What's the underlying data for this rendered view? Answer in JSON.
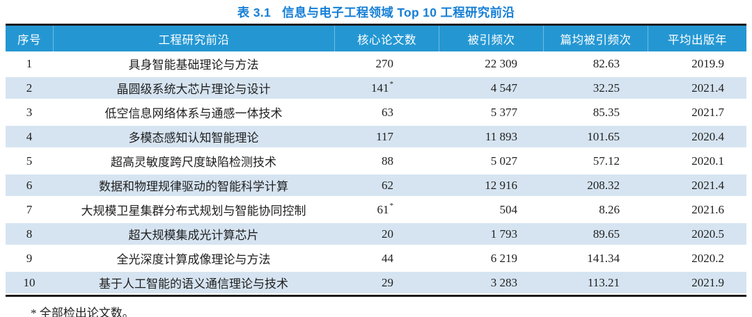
{
  "title": {
    "prefix": "表 3.1",
    "text": "信息与电子工程领域 Top 10 工程研究前沿"
  },
  "chart_data": {
    "type": "table",
    "title": "表 3.1 信息与电子工程领域 Top 10 工程研究前沿",
    "columns": [
      "序号",
      "工程研究前沿",
      "核心论文数",
      "被引频次",
      "篇均被引频次",
      "平均出版年"
    ],
    "rows": [
      {
        "rank": "1",
        "front": "具身智能基础理论与方法",
        "core": "270",
        "core_star": false,
        "cites": "22 309",
        "cpp": "82.63",
        "year": "2019.9"
      },
      {
        "rank": "2",
        "front": "晶圆级系统大芯片理论与设计",
        "core": "141",
        "core_star": true,
        "cites": "4 547",
        "cpp": "32.25",
        "year": "2021.4"
      },
      {
        "rank": "3",
        "front": "低空信息网络体系与通感一体技术",
        "core": "63",
        "core_star": false,
        "cites": "5 377",
        "cpp": "85.35",
        "year": "2021.7"
      },
      {
        "rank": "4",
        "front": "多模态感知认知智能理论",
        "core": "117",
        "core_star": false,
        "cites": "11 893",
        "cpp": "101.65",
        "year": "2020.4"
      },
      {
        "rank": "5",
        "front": "超高灵敏度跨尺度缺陷检测技术",
        "core": "88",
        "core_star": false,
        "cites": "5 027",
        "cpp": "57.12",
        "year": "2020.1"
      },
      {
        "rank": "6",
        "front": "数据和物理规律驱动的智能科学计算",
        "core": "62",
        "core_star": false,
        "cites": "12 916",
        "cpp": "208.32",
        "year": "2021.4"
      },
      {
        "rank": "7",
        "front": "大规模卫星集群分布式规划与智能协同控制",
        "core": "61",
        "core_star": true,
        "cites": "504",
        "cpp": "8.26",
        "year": "2021.6"
      },
      {
        "rank": "8",
        "front": "超大规模集成光计算芯片",
        "core": "20",
        "core_star": false,
        "cites": "1 793",
        "cpp": "89.65",
        "year": "2020.5"
      },
      {
        "rank": "9",
        "front": "全光深度计算成像理论与方法",
        "core": "44",
        "core_star": false,
        "cites": "6 219",
        "cpp": "141.34",
        "year": "2020.2"
      },
      {
        "rank": "10",
        "front": "基于人工智能的语义通信理论与技术",
        "core": "29",
        "core_star": false,
        "cites": "3 283",
        "cpp": "113.21",
        "year": "2021.9"
      }
    ],
    "footnote": "* 全部检出论文数。"
  },
  "colors": {
    "header_bg": "#2497d3",
    "stripe": "#d6e4f1",
    "title_text": "#157fd6",
    "border": "#1c1c1c"
  }
}
